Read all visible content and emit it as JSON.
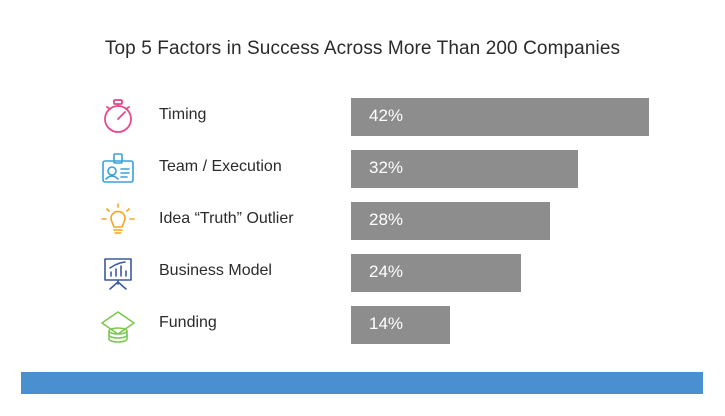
{
  "slide": {
    "title": "Top 5 Factors in Success Across More Than 200 Companies"
  },
  "colors": {
    "bar": "#8d8d8d",
    "footer_band": "#4a90d0",
    "icon_timing": "#e8488e",
    "icon_team": "#3aa0d8",
    "icon_idea": "#f5a623",
    "icon_business": "#3d5a9e",
    "icon_funding": "#7cc850"
  },
  "chart_data": {
    "type": "bar",
    "orientation": "horizontal",
    "title": "Top 5 Factors in Success Across More Than 200 Companies",
    "categories": [
      "Timing",
      "Team / Execution",
      "Idea “Truth” Outlier",
      "Business Model",
      "Funding"
    ],
    "values": [
      42,
      32,
      28,
      24,
      14
    ],
    "value_labels": [
      "42%",
      "32%",
      "28%",
      "24%",
      "14%"
    ],
    "icons": [
      "stopwatch-icon",
      "id-badge-icon",
      "lightbulb-icon",
      "presentation-board-icon",
      "money-stack-icon"
    ],
    "xlim": [
      0,
      42
    ],
    "xlabel": "",
    "ylabel": "",
    "grid": false,
    "legend": "none"
  }
}
